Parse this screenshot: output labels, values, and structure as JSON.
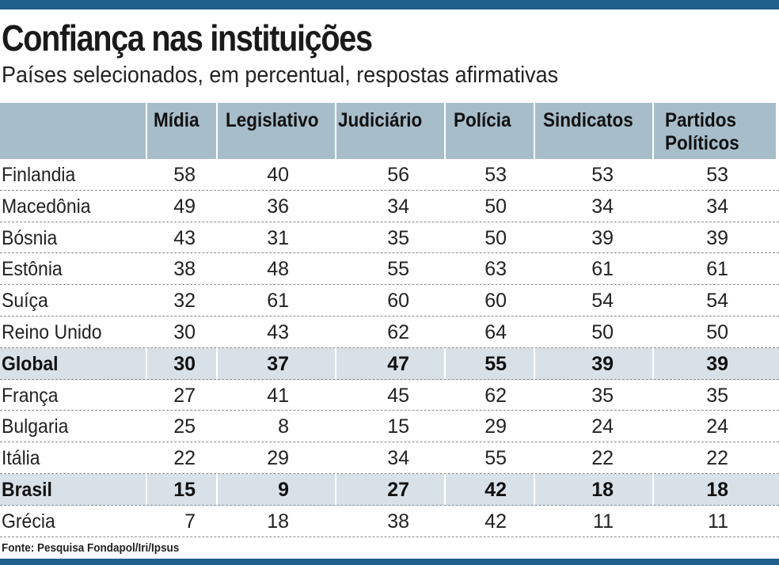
{
  "title": "Confiança nas instituições",
  "subtitle": "Países selecionados, em percentual, respostas afirmativas",
  "source": "Fonte: Pesquisa Fondapol/Iri/Ipsus",
  "colors": {
    "bar": "#1e5f8c",
    "header_bg": "#a8bdca",
    "highlight_bg": "#d9e1e8"
  },
  "chart_data": {
    "type": "table",
    "title": "Confiança nas instituições",
    "subtitle": "Países selecionados, em percentual, respostas afirmativas",
    "columns": [
      "",
      "Mídia",
      "Legislativo",
      "Judiciário",
      "Polícia",
      "Sindicatos",
      "Partidos Políticos"
    ],
    "rows": [
      {
        "country": "Finlandia",
        "values": [
          "58",
          "40",
          "56",
          "53",
          "53",
          "53"
        ],
        "highlight": false
      },
      {
        "country": "Macedônia",
        "values": [
          "49",
          "36",
          "34",
          "50",
          "34",
          "34"
        ],
        "highlight": false
      },
      {
        "country": "Bósnia",
        "values": [
          "43",
          "31",
          "35",
          "50",
          "39",
          "39"
        ],
        "highlight": false
      },
      {
        "country": "Estônia",
        "values": [
          "38",
          "48",
          "55",
          "63",
          "61",
          "61"
        ],
        "highlight": false
      },
      {
        "country": "Suíça",
        "values": [
          "32",
          "61",
          "60",
          "60",
          "54",
          "54"
        ],
        "highlight": false
      },
      {
        "country": "Reino Unido",
        "values": [
          "30",
          "43",
          "62",
          "64",
          "50",
          "50"
        ],
        "highlight": false
      },
      {
        "country": "Global",
        "values": [
          "30",
          "37",
          "47",
          "55",
          "39",
          "39"
        ],
        "highlight": true
      },
      {
        "country": "França",
        "values": [
          "27",
          "41",
          "45",
          "62",
          "35",
          "35"
        ],
        "highlight": false
      },
      {
        "country": "Bulgaria",
        "values": [
          "25",
          "8",
          "15",
          "29",
          "24",
          "24"
        ],
        "highlight": false
      },
      {
        "country": "Itália",
        "values": [
          "22",
          "29",
          "34",
          "55",
          "22",
          "22"
        ],
        "highlight": false
      },
      {
        "country": "Brasil",
        "values": [
          "15",
          "9",
          "27",
          "42",
          "18",
          "18"
        ],
        "highlight": true
      },
      {
        "country": "Grécia",
        "values": [
          "7",
          "18",
          "38",
          "42",
          "11",
          "11"
        ],
        "highlight": false
      }
    ]
  }
}
